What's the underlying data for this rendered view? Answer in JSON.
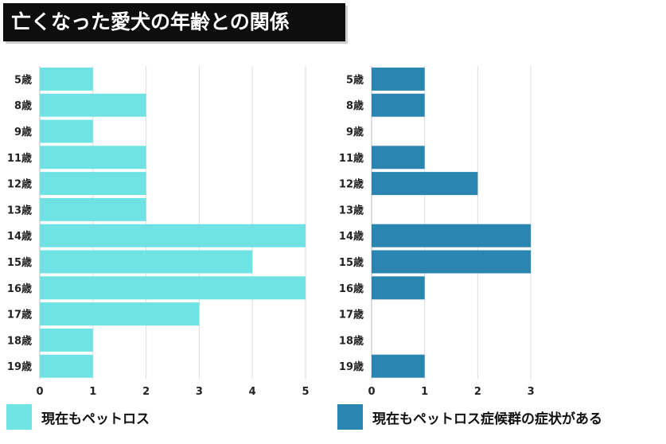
{
  "title": "亡くなった愛犬の年齢との関係",
  "chart_data": [
    {
      "type": "bar",
      "orientation": "horizontal",
      "series_name": "現在もペットロス",
      "color": "#6fe3e3",
      "categories": [
        "5歳",
        "8歳",
        "9歳",
        "11歳",
        "12歳",
        "13歳",
        "14歳",
        "15歳",
        "16歳",
        "17歳",
        "18歳",
        "19歳"
      ],
      "values": [
        1,
        2,
        1,
        2,
        2,
        2,
        5,
        4,
        5,
        3,
        1,
        1
      ],
      "xlim": [
        0,
        5
      ],
      "xticks": [
        "0",
        "1",
        "2",
        "3",
        "4",
        "5"
      ]
    },
    {
      "type": "bar",
      "orientation": "horizontal",
      "series_name": "現在もペットロス症候群の症状がある",
      "color": "#2a86b0",
      "categories": [
        "5歳",
        "8歳",
        "9歳",
        "11歳",
        "12歳",
        "13歳",
        "14歳",
        "15歳",
        "16歳",
        "17歳",
        "18歳",
        "19歳"
      ],
      "values": [
        1,
        1,
        0,
        1,
        2,
        0,
        3,
        3,
        1,
        0,
        0,
        1
      ],
      "xlim": [
        0,
        3
      ],
      "xticks": [
        "0",
        "1",
        "2",
        "3"
      ]
    }
  ]
}
